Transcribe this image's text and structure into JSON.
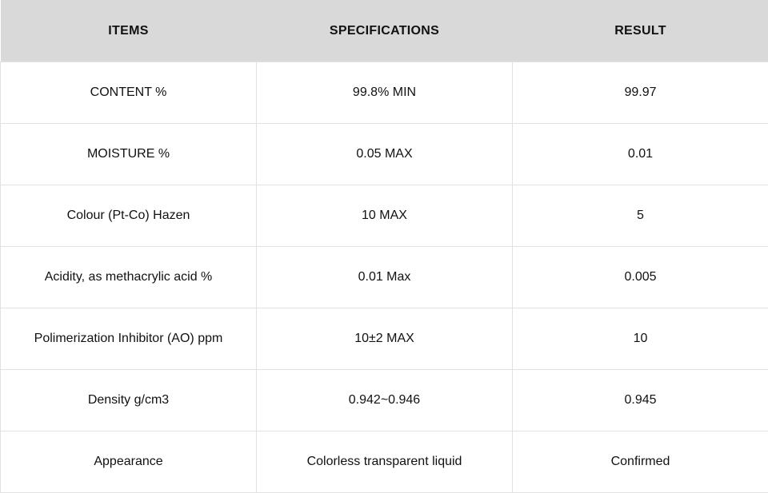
{
  "table": {
    "header": [
      "ITEMS",
      "SPECIFICATIONS",
      "RESULT"
    ],
    "rows": [
      [
        "CONTENT %",
        "99.8% MIN",
        "99.97"
      ],
      [
        "MOISTURE %",
        "0.05 MAX",
        "0.01"
      ],
      [
        "Colour (Pt-Co) Hazen",
        "10 MAX",
        "5"
      ],
      [
        "Acidity, as methacrylic acid %",
        "0.01 Max",
        "0.005"
      ],
      [
        "Polimerization Inhibitor (AO) ppm",
        "10±2 MAX",
        "10"
      ],
      [
        "Density g/cm3",
        "0.942~0.946",
        "0.945"
      ],
      [
        "Appearance",
        "Colorless transparent liquid",
        "Confirmed"
      ]
    ]
  }
}
